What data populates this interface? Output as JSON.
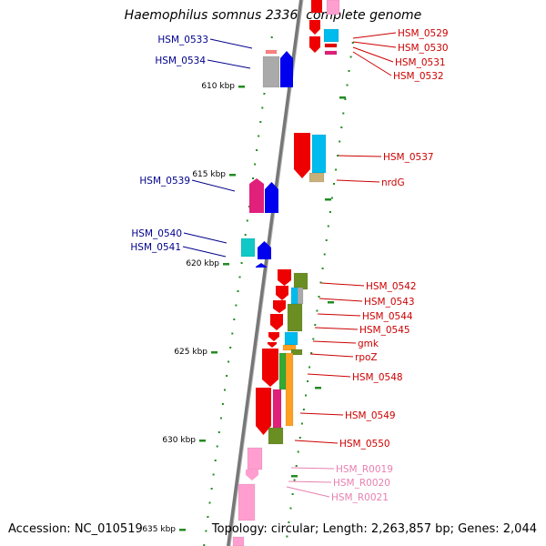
{
  "title": "Haemophilus somnus 2336, complete genome",
  "accession": "Accession: NC_010519",
  "topology": "Topology: circular; Length: 2,263,857 bp; Genes: 2,044",
  "scale_labels": [
    "610 kbp",
    "615 kbp",
    "620 kbp",
    "625 kbp",
    "630 kbp",
    "635 kbp"
  ],
  "left_genes": [
    "HSM_0533",
    "HSM_0534",
    "HSM_0539",
    "HSM_0540",
    "HSM_0541"
  ],
  "right_genes": [
    "HSM_0529",
    "HSM_0530",
    "HSM_0531",
    "HSM_0532",
    "HSM_0537",
    "nrdG",
    "HSM_0542",
    "HSM_0543",
    "HSM_0544",
    "HSM_0545",
    "gmk",
    "rpoZ",
    "HSM_0548",
    "HSM_0549",
    "HSM_0550"
  ],
  "rna_genes": [
    "HSM_R0019",
    "HSM_R0020",
    "HSM_R0021"
  ],
  "colors": {
    "left_label": "#00008b",
    "right_label": "#cc0000",
    "rna_label": "#e880b0",
    "backbone": "#777777",
    "tick": "#228b22",
    "red": "#ee0000",
    "blue": "#0000ee",
    "cyan": "#00bbee",
    "gray": "#aaaaaa",
    "magenta": "#e0207a",
    "olive": "#6b8e23",
    "orange": "#ffa020",
    "green": "#33aa33",
    "tan": "#c8b078",
    "pink": "#ffa0d0"
  }
}
